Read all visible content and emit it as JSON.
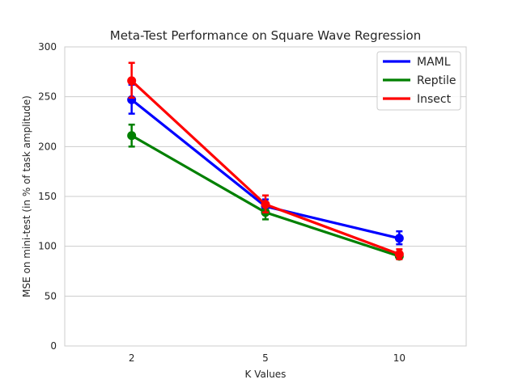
{
  "chart_data": {
    "type": "line",
    "title": "Meta-Test Performance on Square Wave Regression",
    "xlabel": "K Values",
    "ylabel": "MSE on mini-test (in % of task amplitude)",
    "categories": [
      "2",
      "5",
      "10"
    ],
    "ylim": [
      0,
      300
    ],
    "yticks": [
      0,
      50,
      100,
      150,
      200,
      250,
      300
    ],
    "grid": "horizontal",
    "legend_position": "top-right",
    "series": [
      {
        "name": "MAML",
        "color": "#0000ff",
        "values": [
          247,
          140,
          108
        ],
        "err_low": [
          233,
          134,
          102
        ],
        "err_high": [
          262,
          147,
          115
        ]
      },
      {
        "name": "Reptile",
        "color": "#008000",
        "values": [
          211,
          134,
          90
        ],
        "err_low": [
          200,
          127,
          88
        ],
        "err_high": [
          222,
          141,
          93
        ]
      },
      {
        "name": "Insect",
        "color": "#ff0000",
        "values": [
          266,
          142,
          92
        ],
        "err_low": [
          249,
          134,
          87
        ],
        "err_high": [
          284,
          151,
          97
        ]
      }
    ]
  }
}
